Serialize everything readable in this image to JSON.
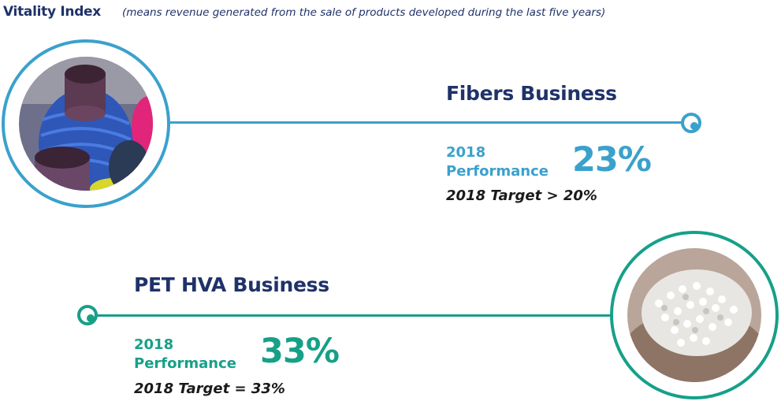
{
  "header": {
    "title": "Vitality Index",
    "subtitle": "(means revenue generated from the sale of products developed during the last five years)"
  },
  "sections": [
    {
      "name": "Fibers Business",
      "year": "2018",
      "performance_label": "Performance",
      "performance_value": "23%",
      "target": "2018 Target > 20%",
      "accent": "#3aa1cc",
      "image": "yarn-spools-photo"
    },
    {
      "name": "PET HVA Business",
      "year": "2018",
      "performance_label": "Performance",
      "performance_value": "33%",
      "target": "2018 Target = 33%",
      "accent": "#16a088",
      "image": "white-pellets-in-hand-photo"
    }
  ],
  "colors": {
    "navy": "#1f3269",
    "blue": "#3aa1cc",
    "teal": "#16a088"
  }
}
